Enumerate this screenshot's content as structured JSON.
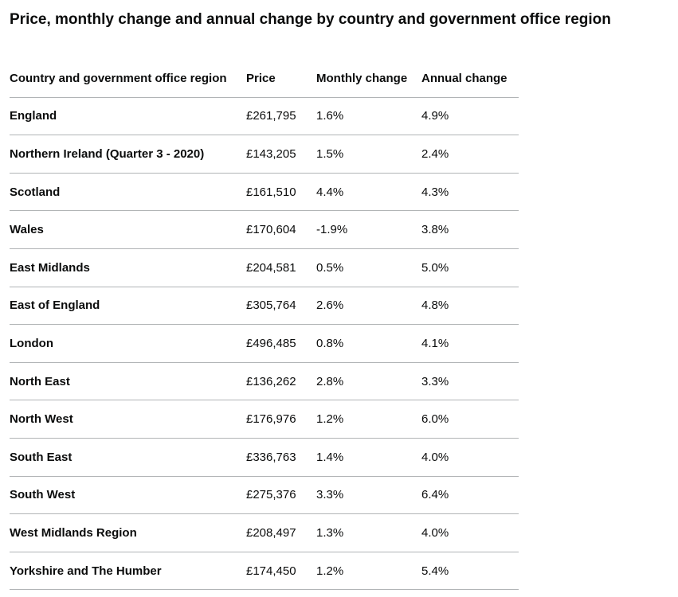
{
  "title": "Price, monthly change and annual change by country and government office region",
  "table": {
    "header": [
      "Country and government office region",
      "Price",
      "Monthly change",
      "Annual change"
    ],
    "rows": [
      [
        "England",
        "£261,795",
        "1.6%",
        "4.9%"
      ],
      [
        "Northern Ireland (Quarter 3 - 2020)",
        "£143,205",
        "1.5%",
        "2.4%"
      ],
      [
        "Scotland",
        "£161,510",
        "4.4%",
        "4.3%"
      ],
      [
        "Wales",
        "£170,604",
        "-1.9%",
        "3.8%"
      ],
      [
        "East Midlands",
        "£204,581",
        "0.5%",
        "5.0%"
      ],
      [
        "East of England",
        "£305,764",
        "2.6%",
        "4.8%"
      ],
      [
        "London",
        "£496,485",
        "0.8%",
        "4.1%"
      ],
      [
        "North East",
        "£136,262",
        "2.8%",
        "3.3%"
      ],
      [
        "North West",
        "£176,976",
        "1.2%",
        "6.0%"
      ],
      [
        "South East",
        "£336,763",
        "1.4%",
        "4.0%"
      ],
      [
        "South West",
        "£275,376",
        "3.3%",
        "6.4%"
      ],
      [
        "West Midlands Region",
        "£208,497",
        "1.3%",
        "4.0%"
      ],
      [
        "Yorkshire and The Humber",
        "£174,450",
        "1.2%",
        "5.4%"
      ]
    ]
  }
}
